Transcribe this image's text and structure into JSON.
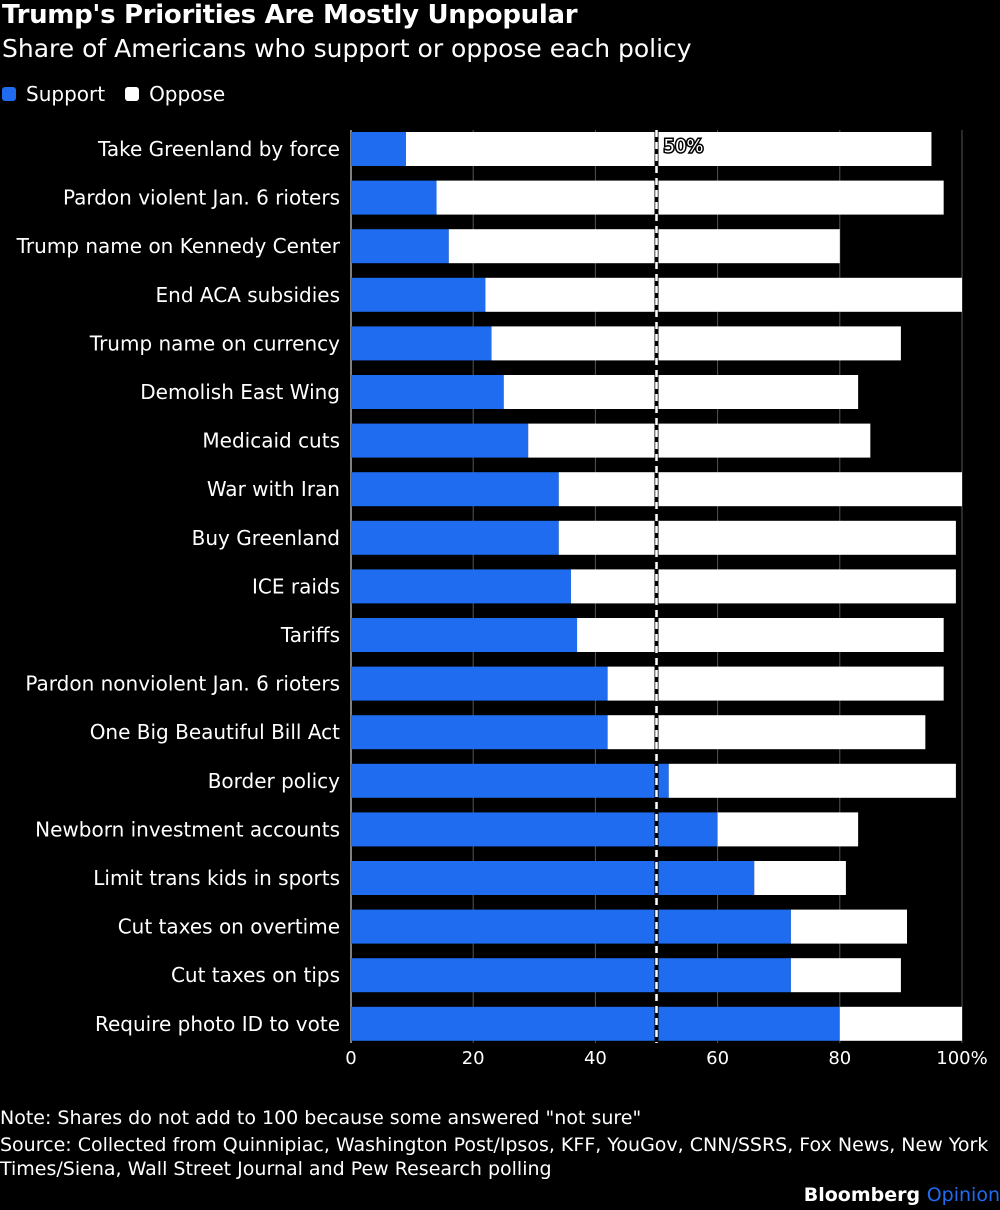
{
  "title": "Trump's Priorities Are Mostly Unpopular",
  "subtitle": "Share of Americans who support or oppose each policy",
  "legend": {
    "support": {
      "label": "Support",
      "color": "#1f6cf0"
    },
    "oppose": {
      "label": "Oppose",
      "color": "#ffffff"
    }
  },
  "chart_data": {
    "type": "bar",
    "orientation": "horizontal",
    "stacked": true,
    "categories": [
      "Take Greenland by force",
      "Pardon violent Jan. 6 rioters",
      "Trump name on Kennedy Center",
      "End ACA subsidies",
      "Trump name on currency",
      "Demolish East Wing",
      "Medicaid cuts",
      "War with Iran",
      "Buy Greenland",
      "ICE raids",
      "Tariffs",
      "Pardon nonviolent Jan. 6 rioters",
      "One Big Beautiful Bill Act",
      "Border policy",
      "Newborn investment accounts",
      "Limit trans kids in sports",
      "Cut taxes on overtime",
      "Cut taxes on tips",
      "Require photo ID to vote"
    ],
    "series": [
      {
        "name": "Support",
        "color": "#1f6cf0",
        "values": [
          9,
          14,
          16,
          22,
          23,
          25,
          29,
          34,
          34,
          36,
          37,
          42,
          42,
          52,
          60,
          66,
          72,
          72,
          80
        ]
      },
      {
        "name": "Oppose",
        "color": "#ffffff",
        "values": [
          86,
          83,
          64,
          78,
          67,
          58,
          56,
          66,
          65,
          63,
          60,
          55,
          52,
          47,
          23,
          15,
          19,
          18,
          20
        ]
      }
    ],
    "xlim": [
      0,
      100
    ],
    "xticks": [
      0,
      20,
      40,
      60,
      80,
      100
    ],
    "xtick_labels": [
      "0",
      "20",
      "40",
      "60",
      "80",
      "100%"
    ],
    "reference_line": {
      "value": 50,
      "label": "50%"
    },
    "grid": true
  },
  "note": "Note: Shares do not add to 100 because some answered \"not sure\"",
  "source_line1": "Source: Collected from Quinnipiac, Washington Post/Ipsos, KFF, YouGov, CNN/SSRS, Fox News, New York",
  "source_line2": "Times/Siena, Wall Street Journal and Pew Research polling",
  "brand": {
    "name": "Bloomberg",
    "suffix": "Opinion"
  }
}
